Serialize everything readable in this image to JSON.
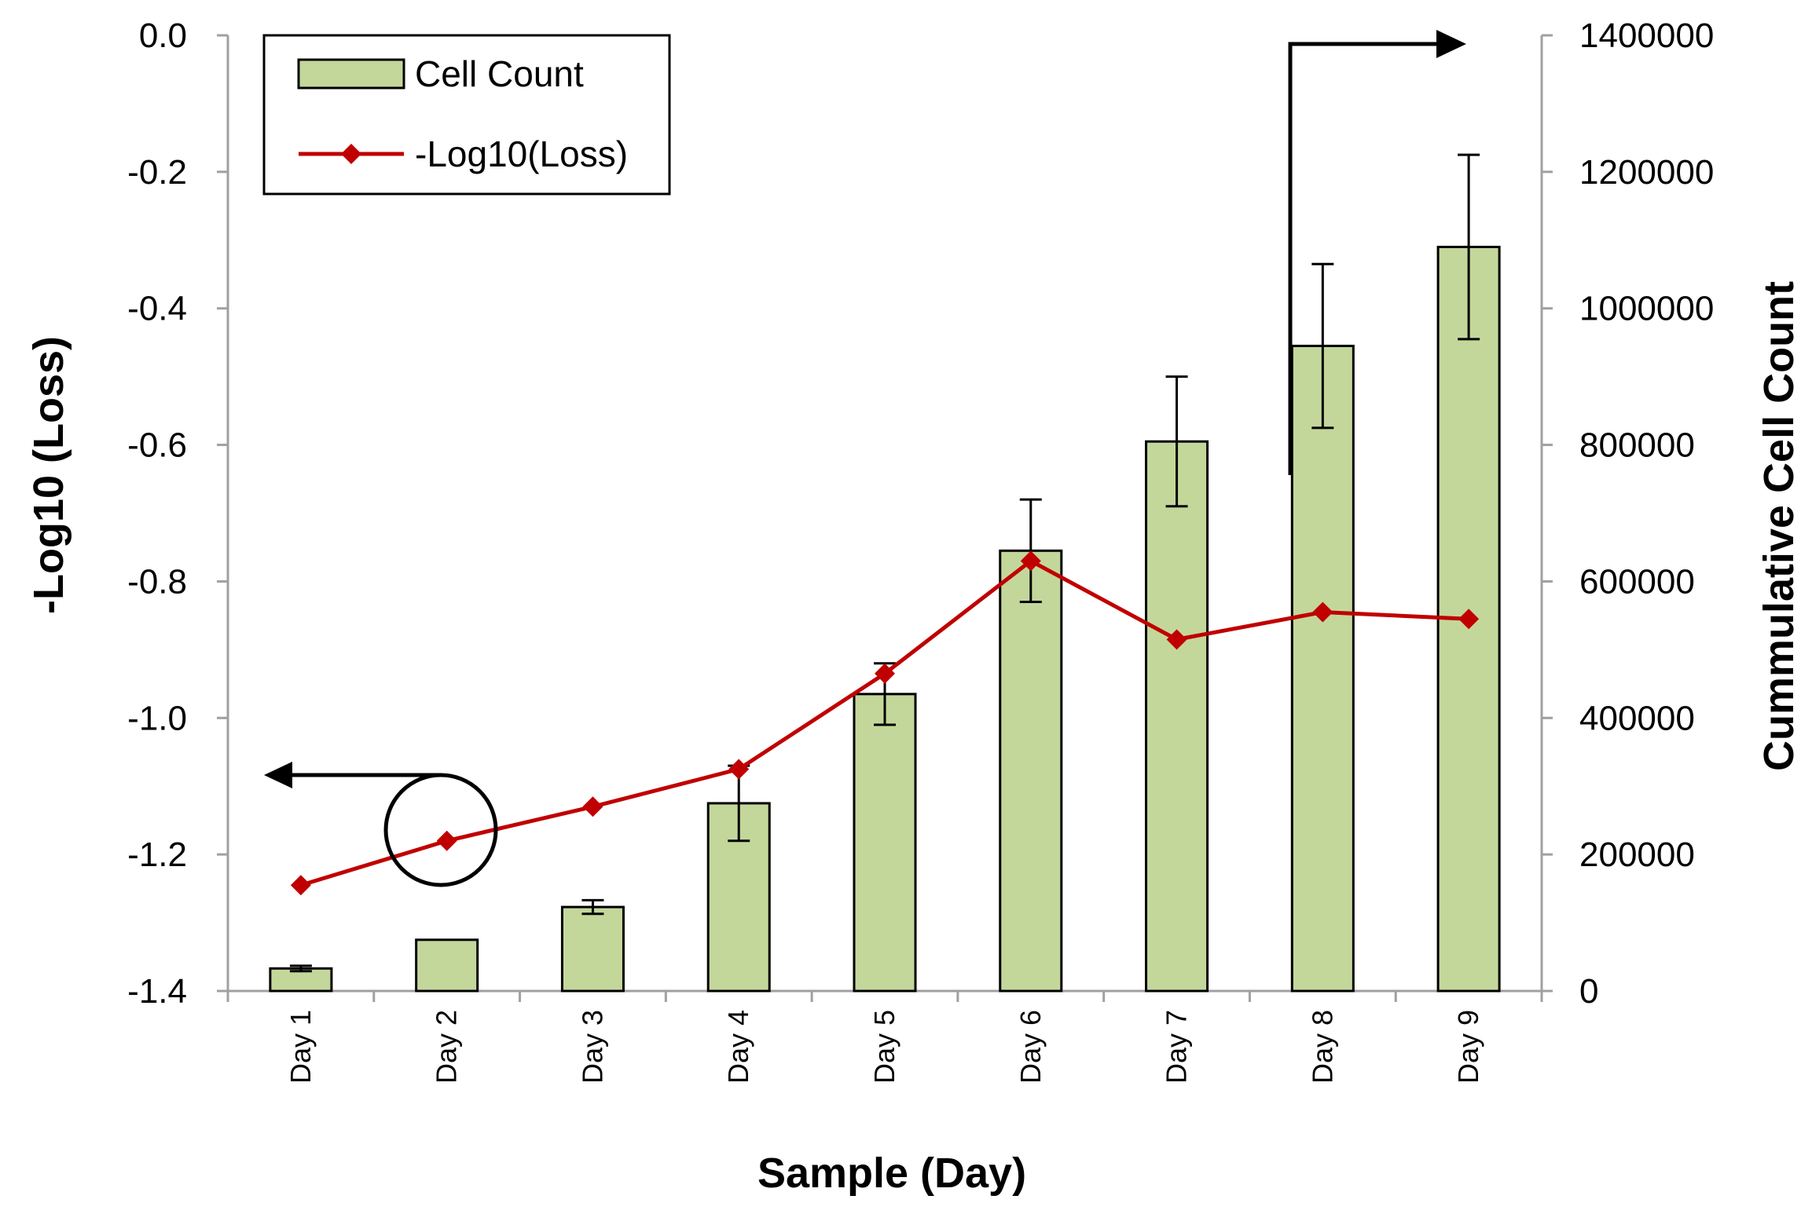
{
  "chart_data": {
    "type": "bar+line",
    "categories": [
      "Day 1",
      "Day 2",
      "Day 3",
      "Day 4",
      "Day 5",
      "Day 6",
      "Day 7",
      "Day 8",
      "Day 9"
    ],
    "xlabel": "Sample (Day)",
    "ylabel_left": "-Log10 (Loss)",
    "ylabel_right": "Cummulative Cell Count",
    "ylim_left": [
      -1.4,
      0.0
    ],
    "ylim_right": [
      0,
      1400000
    ],
    "yticks_left": [
      "0.0",
      "-0.2",
      "-0.4",
      "-0.6",
      "-0.8",
      "-1.0",
      "-1.2",
      "-1.4"
    ],
    "yticks_right": [
      "1400000",
      "1200000",
      "1000000",
      "800000",
      "600000",
      "400000",
      "200000",
      "0"
    ],
    "grid": false,
    "legend_position": "top-left",
    "series": [
      {
        "name": "Cell Count",
        "type": "bar",
        "axis": "right",
        "color": "#c4d79b",
        "edge_color": "#000000",
        "values": [
          33000,
          75000,
          123000,
          275000,
          435000,
          645000,
          805000,
          945000,
          1090000
        ],
        "error": [
          4000,
          0,
          10000,
          55000,
          45000,
          75000,
          95000,
          120000,
          135000
        ]
      },
      {
        "name": "-Log10(Loss)",
        "type": "line",
        "axis": "left",
        "color": "#c00000",
        "marker": "diamond",
        "values": [
          -1.245,
          -1.18,
          -1.13,
          -1.075,
          -0.935,
          -0.77,
          -0.885,
          -0.845,
          -0.855
        ]
      }
    ],
    "annotations": [
      {
        "type": "circle-with-arrow",
        "target": "Day 2 line point",
        "points_to": "left axis"
      },
      {
        "type": "arrow",
        "target": "Day 8 bar",
        "points_to": "right axis"
      }
    ]
  }
}
